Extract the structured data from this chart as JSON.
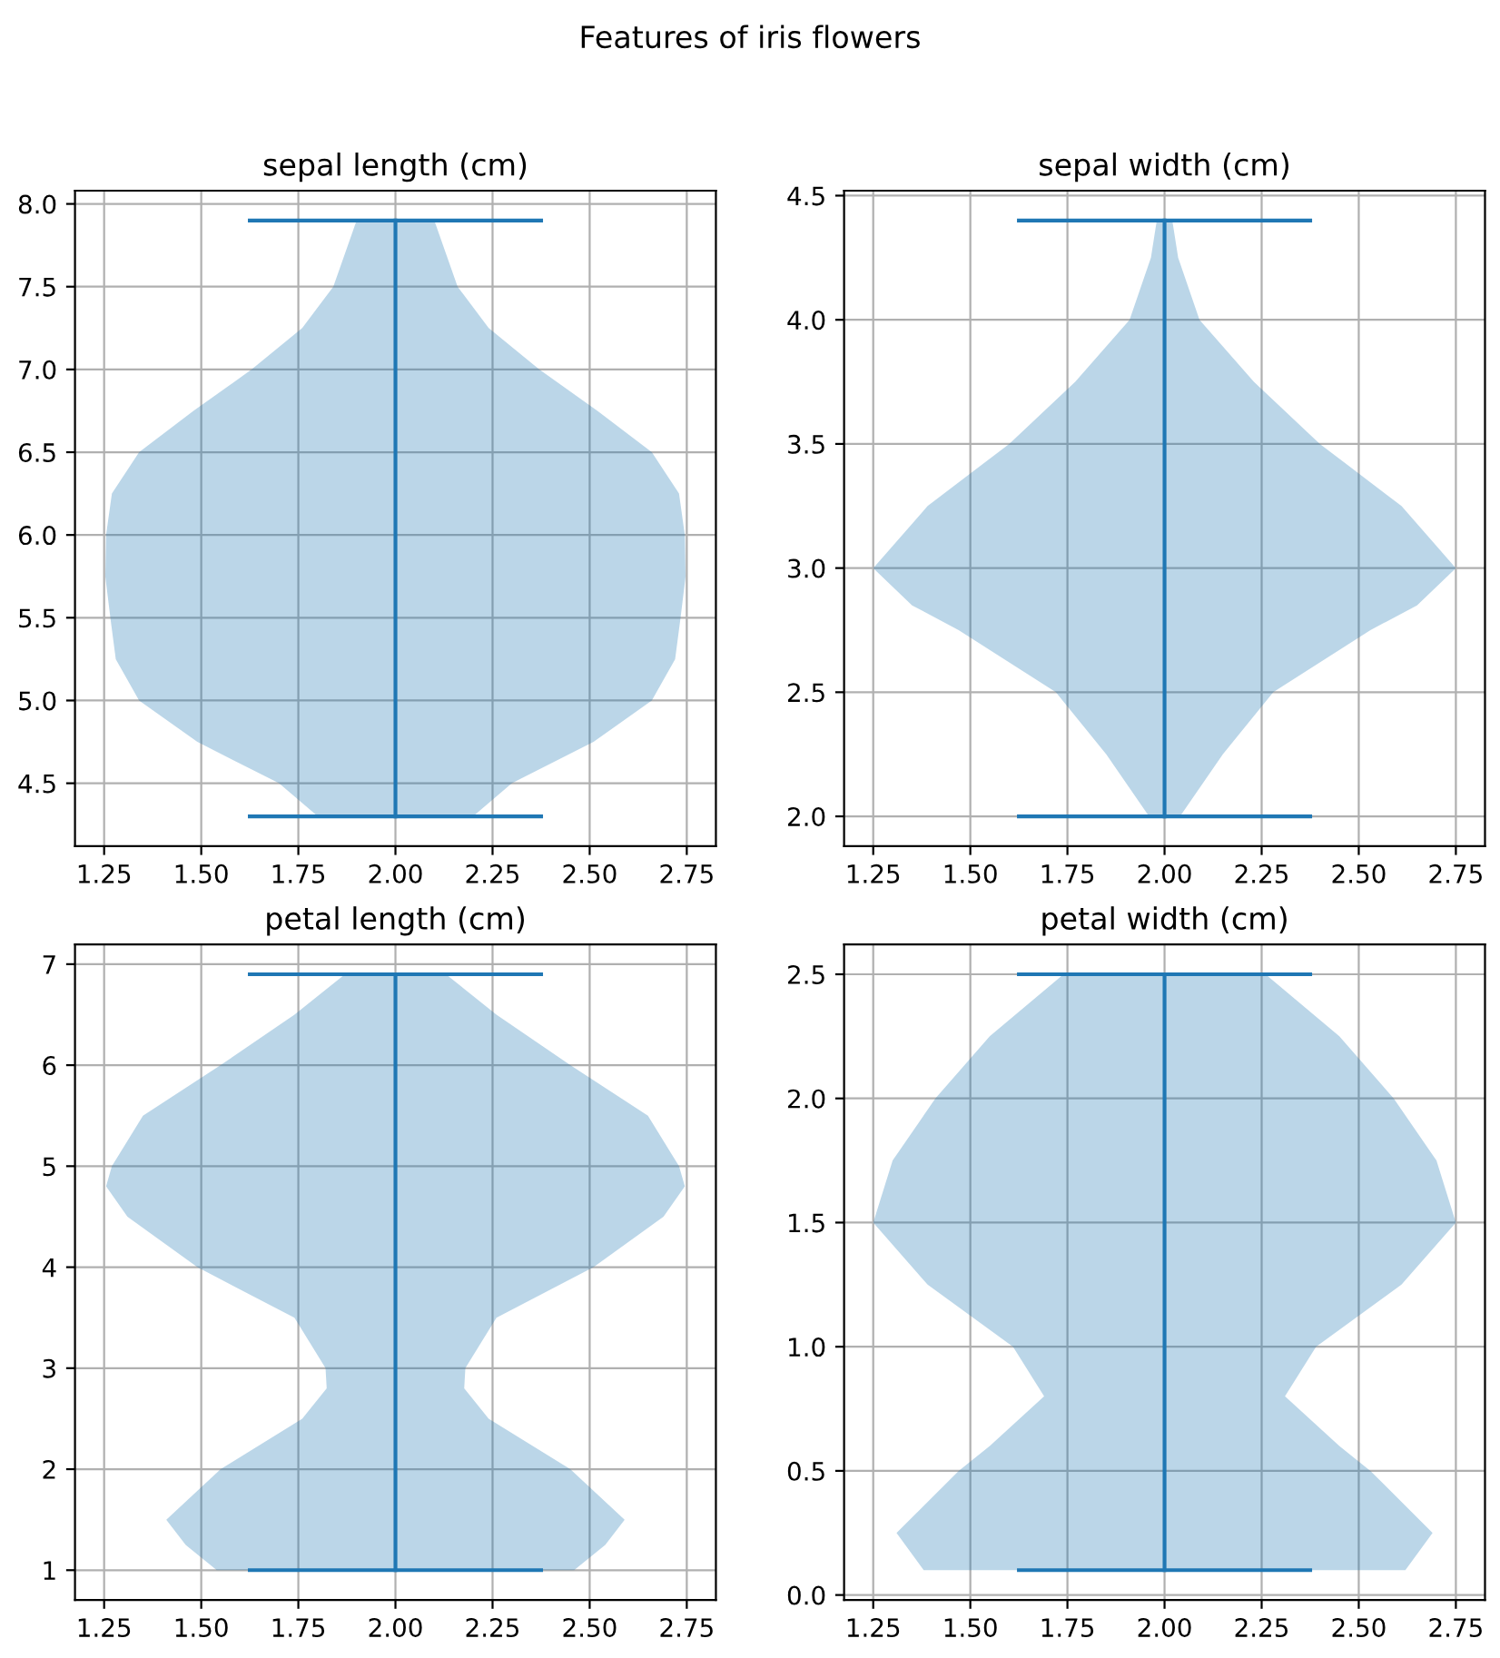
{
  "chart_data": [
    {
      "type": "line",
      "orientation": "horizontal",
      "title": "sepal length (cm)",
      "annotations": [
        "Features of iris flowers"
      ],
      "grid": true,
      "xlim": [
        1.175,
        2.825
      ],
      "xticks": [
        {
          "value": 1.25,
          "label": "1.25"
        },
        {
          "value": 1.5,
          "label": "1.50"
        },
        {
          "value": 1.75,
          "label": "1.75"
        },
        {
          "value": 2,
          "label": "2.00"
        },
        {
          "value": 2.25,
          "label": "2.25"
        },
        {
          "value": 2.5,
          "label": "2.50"
        },
        {
          "value": 2.75,
          "label": "2.75"
        }
      ],
      "ylim": [
        4.12,
        8.08
      ],
      "yticks": [
        4.5,
        {
          "value": 5,
          "label": "5.0"
        },
        5.5,
        {
          "value": 6,
          "label": "6.0"
        },
        6.5,
        {
          "value": 7,
          "label": "7.0"
        },
        7.5,
        {
          "value": 8,
          "label": "8.0"
        }
      ],
      "series": [
        {
          "color": "#1f77b4",
          "x": [
            4.3,
            4.5,
            4.75,
            5.0,
            5.25,
            5.5,
            5.75,
            6.0,
            6.25,
            6.5,
            6.75,
            7.0,
            7.25,
            7.5,
            7.9
          ],
          "values": [
            2,
            2,
            2,
            2,
            2,
            2,
            2,
            2,
            2,
            2,
            2,
            2,
            2,
            2,
            2
          ],
          "lower": [
            1.8,
            1.7,
            1.49,
            1.34,
            1.28,
            1.266,
            1.253,
            1.255,
            1.27,
            1.34,
            1.48,
            1.63,
            1.76,
            1.84,
            1.9
          ],
          "upper": [
            2.2,
            2.3,
            2.51,
            2.66,
            2.72,
            2.734,
            2.747,
            2.745,
            2.73,
            2.66,
            2.52,
            2.37,
            2.24,
            2.16,
            2.1
          ]
        },
        {
          "color": "#1f77b4",
          "x": [
            4.3,
            4.3
          ],
          "values": [
            1.625,
            2.375
          ]
        },
        {
          "color": "#1f77b4",
          "x": [
            7.9,
            7.9
          ],
          "values": [
            1.625,
            2.375
          ]
        }
      ]
    },
    {
      "type": "line",
      "orientation": "horizontal",
      "title": "sepal width (cm)",
      "grid": true,
      "xlim": [
        1.175,
        2.825
      ],
      "xticks": [
        {
          "value": 1.25,
          "label": "1.25"
        },
        {
          "value": 1.5,
          "label": "1.50"
        },
        {
          "value": 1.75,
          "label": "1.75"
        },
        {
          "value": 2,
          "label": "2.00"
        },
        {
          "value": 2.25,
          "label": "2.25"
        },
        {
          "value": 2.5,
          "label": "2.50"
        },
        {
          "value": 2.75,
          "label": "2.75"
        }
      ],
      "ylim": [
        1.88,
        4.52
      ],
      "yticks": [
        {
          "value": 2,
          "label": "2.0"
        },
        2.5,
        {
          "value": 3,
          "label": "3.0"
        },
        3.5,
        {
          "value": 4,
          "label": "4.0"
        },
        4.5
      ],
      "series": [
        {
          "color": "#1f77b4",
          "x": [
            2.0,
            2.25,
            2.5,
            2.75,
            2.85,
            3.0,
            3.25,
            3.5,
            3.75,
            4.0,
            4.25,
            4.4
          ],
          "values": [
            2,
            2,
            2,
            2,
            2,
            2,
            2,
            2,
            2,
            2,
            2,
            2
          ],
          "lower": [
            1.96,
            1.85,
            1.72,
            1.47,
            1.35,
            1.25,
            1.39,
            1.6,
            1.77,
            1.91,
            1.965,
            1.98
          ],
          "upper": [
            2.04,
            2.15,
            2.28,
            2.53,
            2.65,
            2.75,
            2.61,
            2.4,
            2.23,
            2.09,
            2.035,
            2.02
          ]
        },
        {
          "color": "#1f77b4",
          "x": [
            2.0,
            2.0
          ],
          "values": [
            1.625,
            2.375
          ]
        },
        {
          "color": "#1f77b4",
          "x": [
            4.4,
            4.4
          ],
          "values": [
            1.625,
            2.375
          ]
        }
      ]
    },
    {
      "type": "line",
      "orientation": "horizontal",
      "title": "petal length (cm)",
      "grid": true,
      "xlim": [
        1.175,
        2.825
      ],
      "xticks": [
        {
          "value": 1.25,
          "label": "1.25"
        },
        {
          "value": 1.5,
          "label": "1.50"
        },
        {
          "value": 1.75,
          "label": "1.75"
        },
        {
          "value": 2,
          "label": "2.00"
        },
        {
          "value": 2.25,
          "label": "2.25"
        },
        {
          "value": 2.5,
          "label": "2.50"
        },
        {
          "value": 2.75,
          "label": "2.75"
        }
      ],
      "ylim": [
        0.705,
        7.195
      ],
      "yticks": [
        1,
        2,
        3,
        4,
        5,
        6,
        7
      ],
      "series": [
        {
          "color": "#1f77b4",
          "x": [
            1.0,
            1.25,
            1.5,
            2.0,
            2.5,
            2.8,
            3.0,
            3.5,
            4.0,
            4.5,
            4.8,
            5.0,
            5.5,
            6.0,
            6.5,
            6.9
          ],
          "values": [
            2,
            2,
            2,
            2,
            2,
            2,
            2,
            2,
            2,
            2,
            2,
            2,
            2,
            2,
            2,
            2
          ],
          "lower": [
            1.54,
            1.46,
            1.41,
            1.55,
            1.76,
            1.823,
            1.82,
            1.74,
            1.49,
            1.31,
            1.255,
            1.27,
            1.35,
            1.55,
            1.74,
            1.87
          ],
          "upper": [
            2.46,
            2.54,
            2.59,
            2.45,
            2.24,
            2.177,
            2.18,
            2.26,
            2.51,
            2.69,
            2.745,
            2.73,
            2.65,
            2.45,
            2.26,
            2.13
          ]
        },
        {
          "color": "#1f77b4",
          "x": [
            1.0,
            1.0
          ],
          "values": [
            1.625,
            2.375
          ]
        },
        {
          "color": "#1f77b4",
          "x": [
            6.9,
            6.9
          ],
          "values": [
            1.625,
            2.375
          ]
        }
      ]
    },
    {
      "type": "line",
      "orientation": "horizontal",
      "title": "petal width (cm)",
      "grid": true,
      "xlim": [
        1.175,
        2.825
      ],
      "xticks": [
        {
          "value": 1.25,
          "label": "1.25"
        },
        {
          "value": 1.5,
          "label": "1.50"
        },
        {
          "value": 1.75,
          "label": "1.75"
        },
        {
          "value": 2,
          "label": "2.00"
        },
        {
          "value": 2.25,
          "label": "2.25"
        },
        {
          "value": 2.5,
          "label": "2.50"
        },
        {
          "value": 2.75,
          "label": "2.75"
        }
      ],
      "ylim": [
        -0.02,
        2.62
      ],
      "yticks": [
        {
          "value": 0,
          "label": "0.0"
        },
        0.5,
        {
          "value": 1,
          "label": "1.0"
        },
        1.5,
        {
          "value": 2,
          "label": "2.0"
        },
        2.5
      ],
      "series": [
        {
          "color": "#1f77b4",
          "x": [
            0.1,
            0.25,
            0.5,
            0.6,
            0.8,
            1.0,
            1.25,
            1.5,
            1.75,
            2.0,
            2.25,
            2.5
          ],
          "values": [
            2,
            2,
            2,
            2,
            2,
            2,
            2,
            2,
            2,
            2,
            2,
            2
          ],
          "lower": [
            1.38,
            1.31,
            1.47,
            1.55,
            1.69,
            1.61,
            1.39,
            1.25,
            1.3,
            1.41,
            1.55,
            1.74
          ],
          "upper": [
            2.62,
            2.69,
            2.53,
            2.45,
            2.31,
            2.39,
            2.61,
            2.75,
            2.7,
            2.59,
            2.45,
            2.26
          ]
        },
        {
          "color": "#1f77b4",
          "x": [
            0.1,
            0.1
          ],
          "values": [
            1.625,
            2.375
          ]
        },
        {
          "color": "#1f77b4",
          "x": [
            2.5,
            2.5
          ],
          "values": [
            1.625,
            2.375
          ]
        }
      ]
    }
  ]
}
